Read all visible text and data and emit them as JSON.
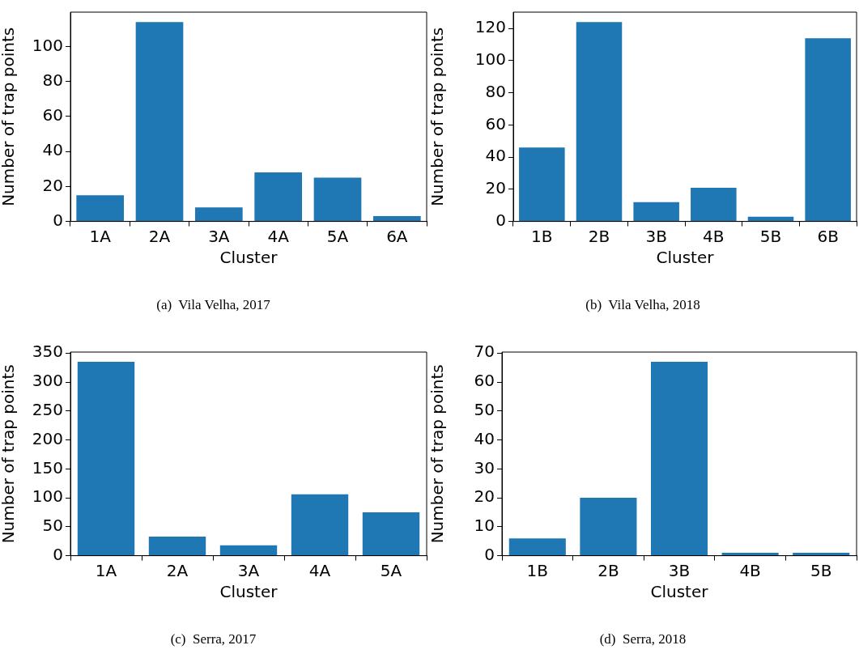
{
  "chart_data": [
    {
      "type": "bar",
      "title": "(a)  Vila Velha, 2017",
      "xlabel": "Cluster",
      "ylabel": "Number of trap points",
      "categories": [
        "1A",
        "2A",
        "3A",
        "4A",
        "5A",
        "6A"
      ],
      "values": [
        15,
        114,
        8,
        28,
        25,
        3
      ],
      "color": "#1f77b4",
      "ylim": [
        0,
        119.7
      ],
      "yticks": [
        0,
        20,
        40,
        60,
        80,
        100
      ]
    },
    {
      "type": "bar",
      "title": "(b)  Vila Velha, 2018",
      "xlabel": "Cluster",
      "ylabel": "Number of trap points",
      "categories": [
        "1B",
        "2B",
        "3B",
        "4B",
        "5B",
        "6B"
      ],
      "values": [
        46,
        124,
        12,
        21,
        3,
        114
      ],
      "color": "#1f77b4",
      "ylim": [
        0,
        130.2
      ],
      "yticks": [
        0,
        20,
        40,
        60,
        80,
        100,
        120
      ]
    },
    {
      "type": "bar",
      "title": "(c)  Serra, 2017",
      "xlabel": "Cluster",
      "ylabel": "Number of trap points",
      "categories": [
        "1A",
        "2A",
        "3A",
        "4A",
        "5A"
      ],
      "values": [
        335,
        33,
        18,
        106,
        75
      ],
      "color": "#1f77b4",
      "ylim": [
        0,
        351.75
      ],
      "yticks": [
        0,
        50,
        100,
        150,
        200,
        250,
        300,
        350
      ]
    },
    {
      "type": "bar",
      "title": "(d)  Serra, 2018",
      "xlabel": "Cluster",
      "ylabel": "Number of trap points",
      "categories": [
        "1B",
        "2B",
        "3B",
        "4B",
        "5B"
      ],
      "values": [
        6,
        20,
        67,
        1,
        1
      ],
      "color": "#1f77b4",
      "ylim": [
        0,
        70.35
      ],
      "yticks": [
        0,
        10,
        20,
        30,
        40,
        50,
        60,
        70
      ]
    }
  ]
}
